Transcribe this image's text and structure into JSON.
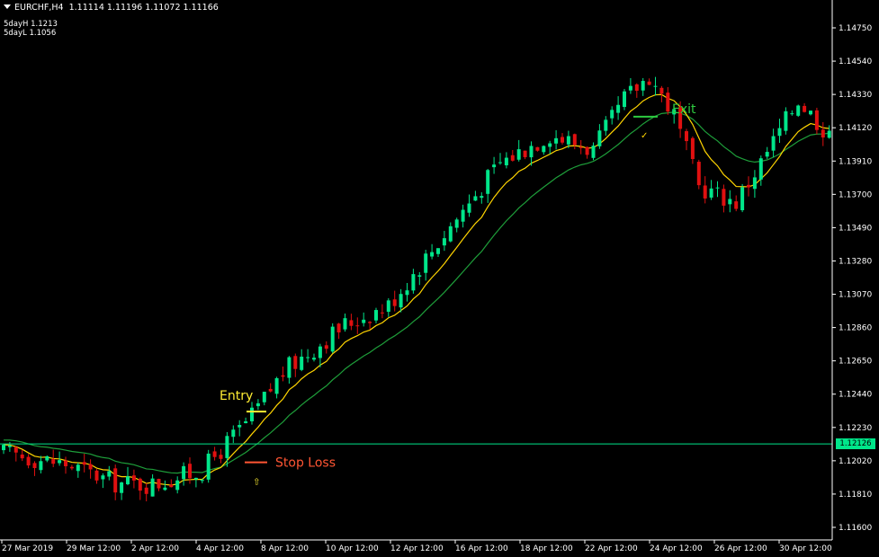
{
  "header": {
    "symbol": "EURCHF,H4",
    "ohlc": "1.11114 1.11196 1.11072 1.11166"
  },
  "indicators": [
    {
      "label": "5dayH",
      "value": "1.1213"
    },
    {
      "label": "5dayL",
      "value": "1.1056"
    }
  ],
  "current_price": "1.12126",
  "annotations": {
    "entry": "Entry",
    "stop_loss": "Stop Loss",
    "exit": "Exit"
  },
  "colors": {
    "background": "#000000",
    "bull": "#00e68a",
    "bear": "#e01010",
    "fast_ma": "#ffd400",
    "slow_ma": "#1e9e3a",
    "price_line": "#00e68a",
    "entry": "#ffee33",
    "stop_loss": "#ff5533",
    "exit": "#2ecc40",
    "axis": "#ffffff"
  },
  "chart_data": {
    "type": "candlestick",
    "symbol": "EURCHF",
    "timeframe": "H4",
    "y_ticks": [
      "1.14750",
      "1.14540",
      "1.14330",
      "1.14120",
      "1.13910",
      "1.13700",
      "1.13490",
      "1.13280",
      "1.13070",
      "1.12860",
      "1.12650",
      "1.12440",
      "1.12230",
      "1.12020",
      "1.11810",
      "1.11600"
    ],
    "y_range": [
      1.1148,
      1.1495
    ],
    "x_ticks": [
      "27 Mar 2019",
      "29 Mar 12:00",
      "2 Apr 12:00",
      "4 Apr 12:00",
      "8 Apr 12:00",
      "10 Apr 12:00",
      "12 Apr 12:00",
      "16 Apr 12:00",
      "18 Apr 12:00",
      "22 Apr 12:00",
      "24 Apr 12:00",
      "26 Apr 12:00",
      "30 Apr 12:00"
    ],
    "current_price": 1.12126,
    "series": [
      {
        "name": "5dayH",
        "value": 1.1213
      },
      {
        "name": "5dayL",
        "value": 1.1056
      }
    ],
    "path_anchors": [
      [
        0,
        1.1207
      ],
      [
        10,
        1.12
      ],
      [
        18,
        1.1188
      ],
      [
        24,
        1.1187
      ],
      [
        32,
        1.1196
      ],
      [
        40,
        1.123
      ],
      [
        45,
        1.1258
      ],
      [
        55,
        1.1288
      ],
      [
        62,
        1.13
      ],
      [
        72,
        1.135
      ],
      [
        80,
        1.139
      ],
      [
        88,
        1.1408
      ],
      [
        95,
        1.1398
      ],
      [
        100,
        1.143
      ],
      [
        104,
        1.1445
      ],
      [
        108,
        1.142
      ],
      [
        112,
        1.1375
      ],
      [
        118,
        1.1365
      ],
      [
        122,
        1.139
      ],
      [
        128,
        1.143
      ],
      [
        132,
        1.1412
      ]
    ],
    "entry": {
      "price": 1.1233,
      "label": "Entry"
    },
    "stop_loss": {
      "price": 1.1201,
      "label": "Stop Loss"
    },
    "exit": {
      "price": 1.1419,
      "label": "Exit"
    }
  }
}
